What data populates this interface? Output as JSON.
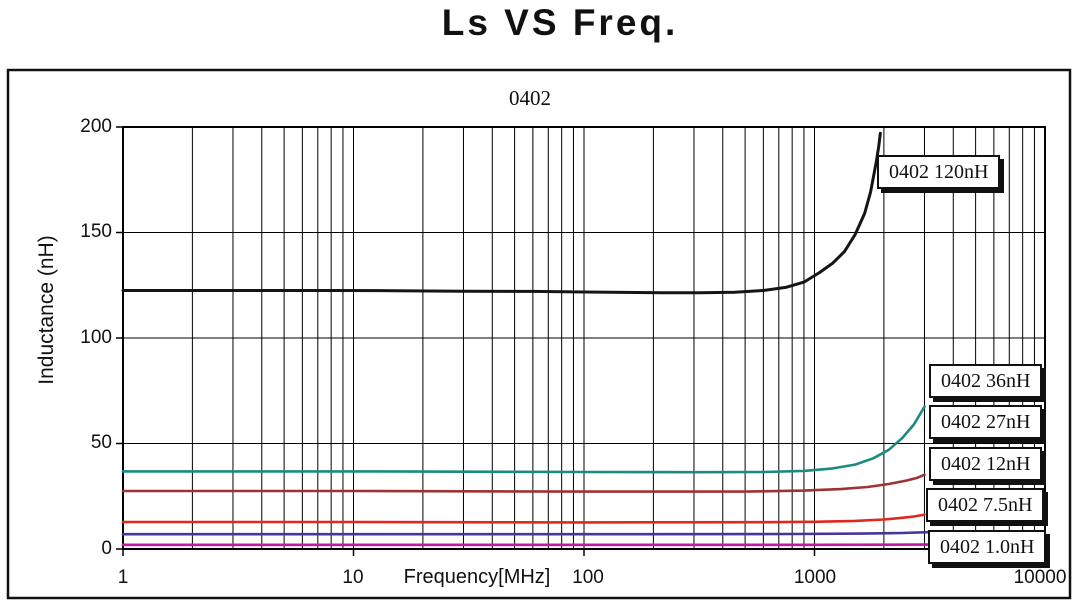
{
  "chart_data": {
    "type": "line",
    "title": "Ls VS Freq.",
    "subtitle": "0402",
    "xlabel": "Frequency[MHz]",
    "ylabel": "Inductance (nH)",
    "x_scale": "log",
    "xlim": [
      1,
      10000
    ],
    "ylim": [
      0,
      200
    ],
    "x_ticks": [
      "1",
      "10",
      "100",
      "1000",
      "10000"
    ],
    "y_ticks": [
      "200",
      "150",
      "100",
      "50",
      "0"
    ],
    "grid": "black log minor vertical gridlines each decade; horizontal gridlines every 50 nH; legend callout boxes with drop shadow",
    "legend_position": "right-inside",
    "series": [
      {
        "name": "0402 120nH",
        "label": "0402 120nH",
        "color": "#151515",
        "width": 3,
        "points": [
          [
            1,
            122.5
          ],
          [
            2,
            122.5
          ],
          [
            4,
            122.5
          ],
          [
            8,
            122.5
          ],
          [
            15,
            122.4
          ],
          [
            30,
            122.2
          ],
          [
            60,
            122.1
          ],
          [
            100,
            121.8
          ],
          [
            150,
            121.6
          ],
          [
            220,
            121.4
          ],
          [
            320,
            121.4
          ],
          [
            450,
            121.7
          ],
          [
            600,
            122.5
          ],
          [
            750,
            124
          ],
          [
            900,
            126.5
          ],
          [
            1050,
            131
          ],
          [
            1200,
            135.5
          ],
          [
            1350,
            141
          ],
          [
            1500,
            149
          ],
          [
            1650,
            159
          ],
          [
            1750,
            169
          ],
          [
            1850,
            183
          ],
          [
            1900,
            191
          ],
          [
            1930,
            197
          ]
        ]
      },
      {
        "name": "0402 36nH",
        "label": "0402 36nH",
        "color": "#1b8b80",
        "width": 2.6,
        "points": [
          [
            1,
            36.8
          ],
          [
            5,
            36.8
          ],
          [
            10,
            36.8
          ],
          [
            50,
            36.6
          ],
          [
            100,
            36.5
          ],
          [
            300,
            36.4
          ],
          [
            600,
            36.5
          ],
          [
            900,
            37
          ],
          [
            1200,
            38.2
          ],
          [
            1500,
            40
          ],
          [
            1800,
            43
          ],
          [
            2100,
            47
          ],
          [
            2400,
            52.5
          ],
          [
            2700,
            59
          ],
          [
            3000,
            67.5
          ]
        ]
      },
      {
        "name": "0402 27nH",
        "label": "0402 27nH",
        "color": "#9e3334",
        "width": 2.6,
        "points": [
          [
            1,
            27.5
          ],
          [
            10,
            27.5
          ],
          [
            100,
            27.2
          ],
          [
            500,
            27.2
          ],
          [
            900,
            27.7
          ],
          [
            1300,
            28.4
          ],
          [
            1700,
            29.4
          ],
          [
            2100,
            30.8
          ],
          [
            2500,
            32.4
          ],
          [
            2800,
            33.8
          ],
          [
            3000,
            35.2
          ]
        ]
      },
      {
        "name": "0402 12nH",
        "label": "0402 12nH",
        "color": "#e0281f",
        "width": 2.6,
        "points": [
          [
            1,
            12.8
          ],
          [
            10,
            12.8
          ],
          [
            100,
            12.6
          ],
          [
            600,
            12.7
          ],
          [
            1000,
            12.9
          ],
          [
            1500,
            13.3
          ],
          [
            2000,
            14
          ],
          [
            2400,
            14.8
          ],
          [
            2700,
            15.4
          ],
          [
            3000,
            16.3
          ]
        ]
      },
      {
        "name": "0402 7.5nH",
        "label": "0402 7.5nH",
        "color": "#46369c",
        "width": 2.6,
        "points": [
          [
            1,
            7
          ],
          [
            10,
            7
          ],
          [
            100,
            7
          ],
          [
            800,
            7.1
          ],
          [
            1600,
            7.3
          ],
          [
            2400,
            7.6
          ],
          [
            3200,
            8
          ]
        ]
      },
      {
        "name": "0402 1.0nH",
        "label": "0402 1.0nH",
        "color": "#c5199d",
        "width": 2.6,
        "points": [
          [
            1,
            2
          ],
          [
            100,
            2
          ],
          [
            1000,
            2
          ],
          [
            3000,
            2.1
          ],
          [
            10000,
            2.2
          ]
        ]
      }
    ]
  }
}
